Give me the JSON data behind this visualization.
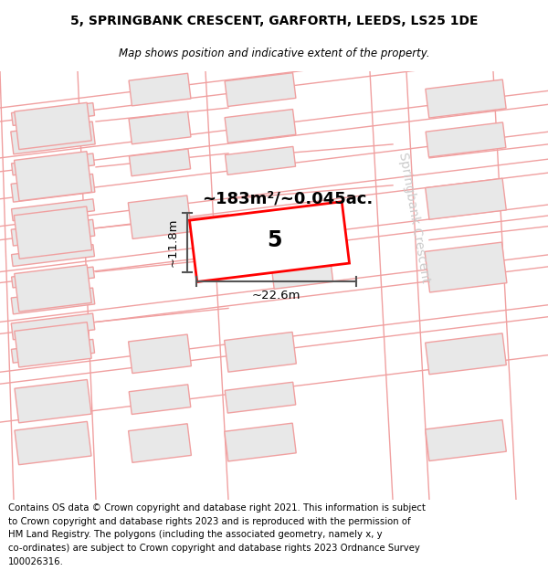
{
  "title_line1": "5, SPRINGBANK CRESCENT, GARFORTH, LEEDS, LS25 1DE",
  "title_line2": "Map shows position and indicative extent of the property.",
  "footer_lines": [
    "Contains OS data © Crown copyright and database right 2021. This information is subject",
    "to Crown copyright and database rights 2023 and is reproduced with the permission of",
    "HM Land Registry. The polygons (including the associated geometry, namely x, y",
    "co-ordinates) are subject to Crown copyright and database rights 2023 Ordnance Survey",
    "100026316."
  ],
  "area_label": "~183m²/~0.045ac.",
  "width_label": "~22.6m",
  "height_label": "~11.8m",
  "plot_number": "5",
  "street_label": "Springbank Crescent",
  "map_bg": "#ffffff",
  "building_fill": "#e8e8e8",
  "building_edge": "#f0a0a0",
  "road_line_color": "#f0a0a0",
  "highlight_fill": "#ffffff",
  "highlight_edge": "#ff0000",
  "dim_line_color": "#555555",
  "street_label_color": "#cccccc",
  "map_rot": 7
}
